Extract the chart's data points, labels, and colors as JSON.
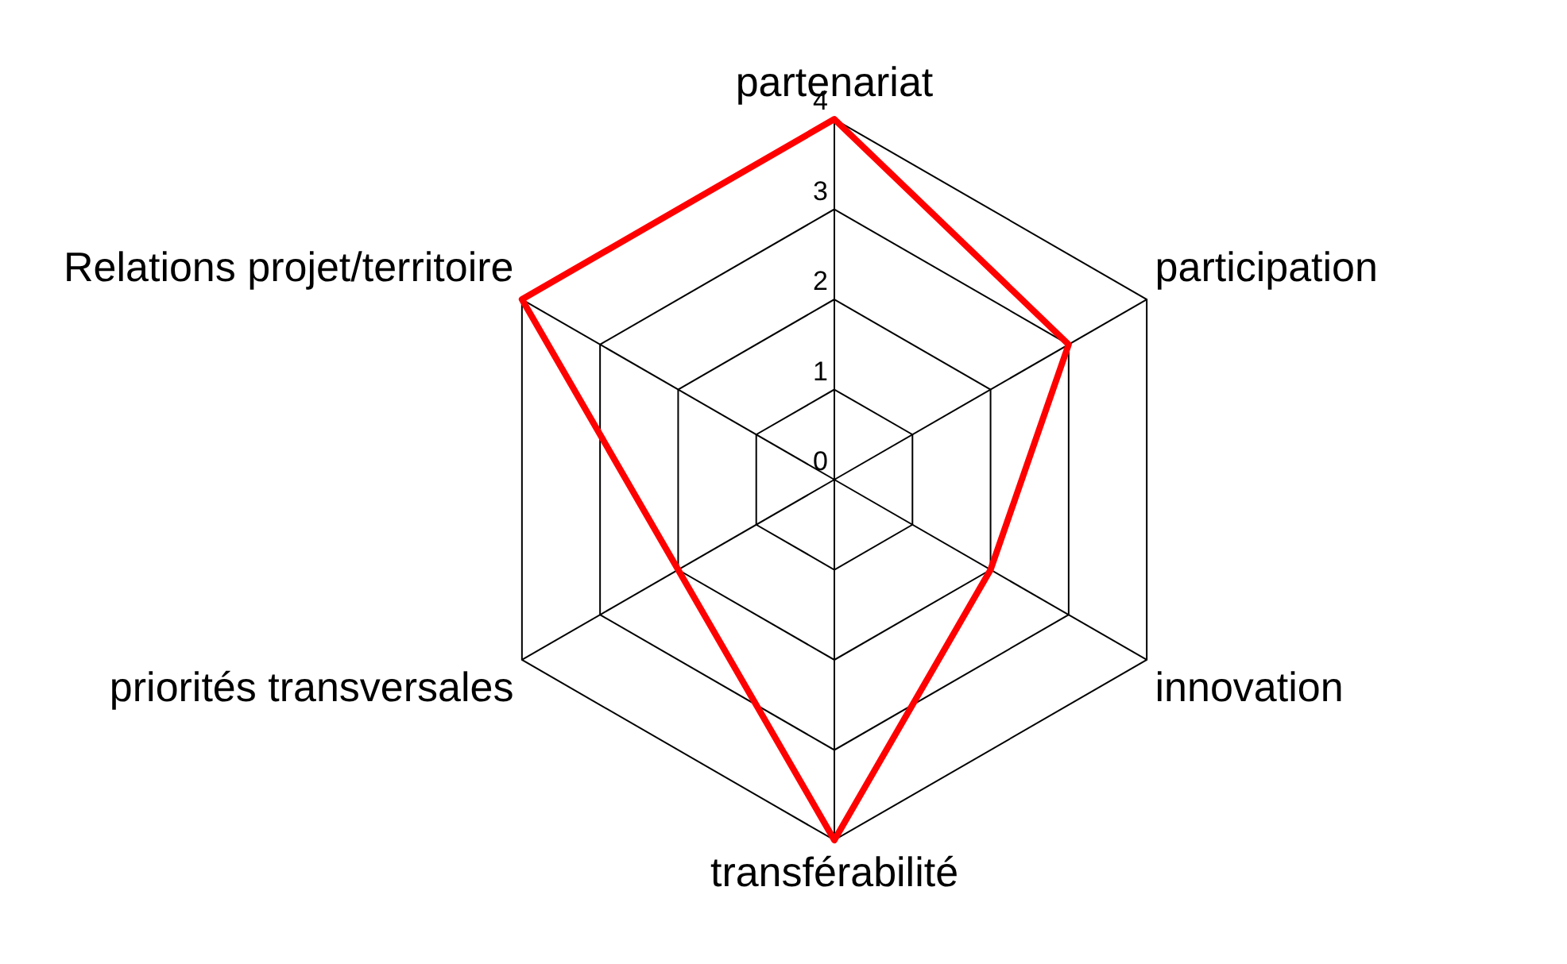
{
  "chart_data": {
    "type": "radar",
    "categories": [
      "partenariat",
      "participation",
      "innovation",
      "transférabilité",
      "priorités transversales",
      "Relations projet/territoire"
    ],
    "series": [
      {
        "color": "#ff0000",
        "values": [
          4,
          3,
          2,
          4,
          2,
          4
        ]
      }
    ],
    "ylim": [
      0,
      4
    ],
    "yticks": [
      0,
      1,
      2,
      3,
      4
    ],
    "grid": true,
    "legend": false,
    "marker": "none",
    "line_style": "solid"
  }
}
